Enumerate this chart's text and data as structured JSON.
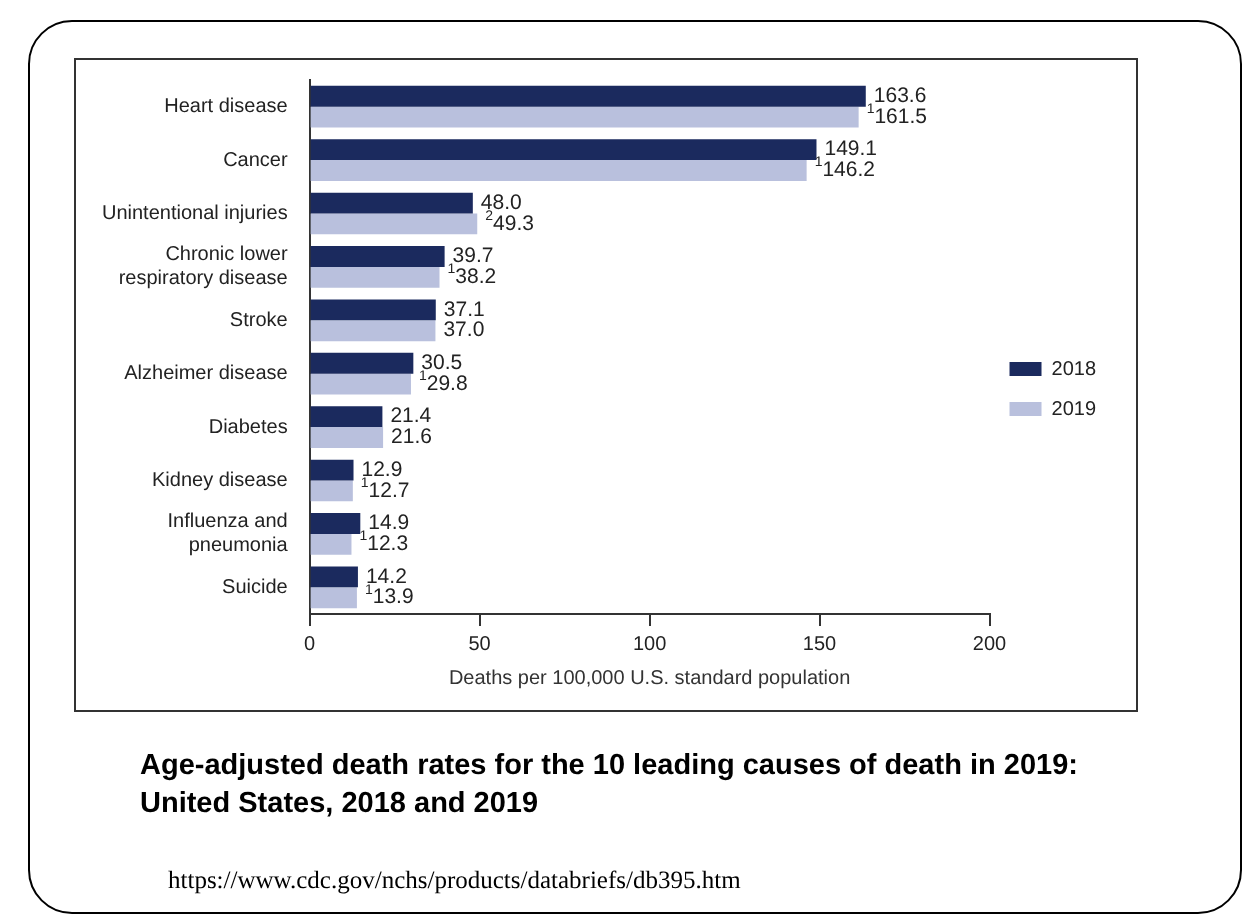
{
  "chart_data": {
    "type": "bar",
    "orientation": "horizontal",
    "title": "Age-adjusted death rates for the 10 leading causes of death in 2019: United States, 2018 and 2019",
    "xlabel": "Deaths per 100,000 U.S. standard population",
    "categories": [
      "Heart disease",
      "Cancer",
      "Unintentional injuries",
      "Chronic lower respiratory disease",
      "Stroke",
      "Alzheimer disease",
      "Diabetes",
      "Kidney disease",
      "Influenza and pneumonia",
      "Suicide"
    ],
    "series": [
      {
        "name": "2018",
        "color": "#1b2a5e",
        "values": [
          163.6,
          149.1,
          48.0,
          39.7,
          37.1,
          30.5,
          21.4,
          12.9,
          14.9,
          14.2
        ],
        "value_labels": [
          "163.6",
          "149.1",
          "48.0",
          "39.7",
          "37.1",
          "30.5",
          "21.4",
          "12.9",
          "14.9",
          "14.2"
        ]
      },
      {
        "name": "2019",
        "color": "#b9c0dd",
        "values": [
          161.5,
          146.2,
          49.3,
          38.2,
          37.0,
          29.8,
          21.6,
          12.7,
          12.3,
          13.9
        ],
        "value_labels": [
          "$^{1}$161.5",
          "$^{1}$146.2",
          "$^{2}$49.3",
          "$^{1}$38.2",
          "37.0",
          "$^{1}$29.8",
          "21.6",
          "$^{1}$12.7",
          "$^{1}$12.3",
          "$^{1}$13.9"
        ]
      }
    ],
    "xlim": [
      0,
      200
    ],
    "xticks": [
      0,
      50,
      100,
      150,
      200
    ],
    "legend": "right",
    "annotations": [
      "https://www.cdc.gov/nchs/products/databriefs/db395.htm"
    ]
  }
}
